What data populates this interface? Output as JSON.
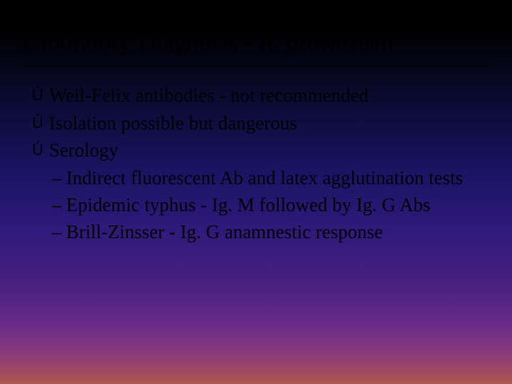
{
  "colors": {
    "background_gradient": [
      "#000000",
      "#0a0a2e",
      "#1a1464",
      "#2e1a7a",
      "#4a2080",
      "#6b2d8a",
      "#8a3a7a",
      "#a04a60",
      "#b05a50"
    ],
    "text_color": "#000000",
    "rule_color": "#000000"
  },
  "typography": {
    "font_family": "Times New Roman",
    "title_fontsize_pt": 26,
    "body_fontsize_pt": 20
  },
  "title": {
    "prefix": "Laboratory Diagnosis - ",
    "species": "R. prowazekii"
  },
  "bullets": [
    {
      "icon": "Ú",
      "text": "Weil-Felix antibodies - not recommended"
    },
    {
      "icon": "Ú",
      "text": "Isolation possible but dangerous"
    },
    {
      "icon": "Ú",
      "text": "Serology"
    }
  ],
  "subbullets": [
    {
      "dash": "–",
      "text": "Indirect fluorescent Ab and latex agglutination tests"
    },
    {
      "dash": "–",
      "text": "Epidemic typhus - Ig. M followed by Ig. G Abs"
    },
    {
      "dash": "–",
      "text": "Brill-Zinsser - Ig. G anamnestic response"
    }
  ]
}
